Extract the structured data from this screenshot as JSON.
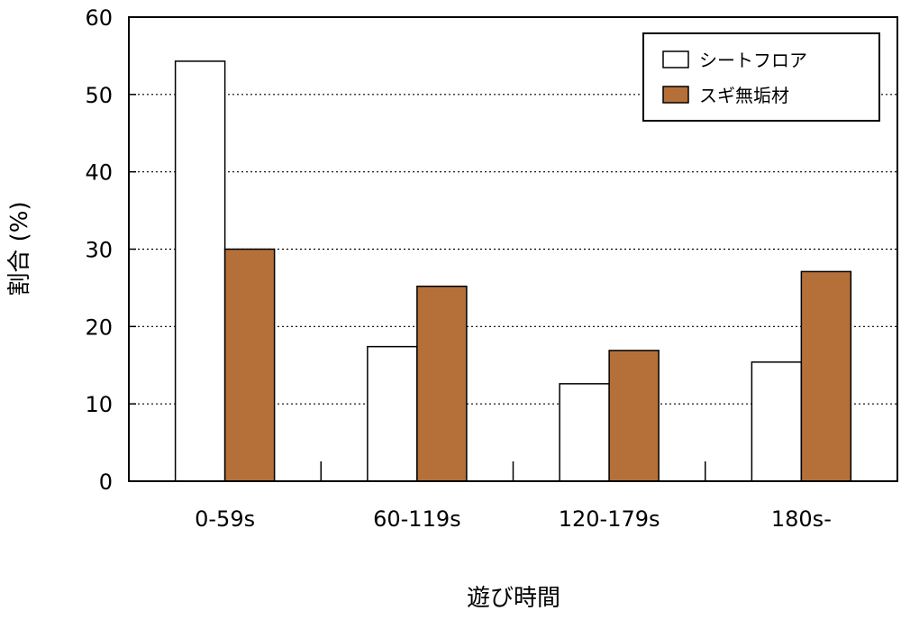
{
  "chart_data": {
    "type": "bar",
    "categories": [
      "0-59s",
      "60-119s",
      "120-179s",
      "180s-"
    ],
    "series": [
      {
        "name": "シートフロア",
        "values": [
          54.3,
          17.4,
          12.6,
          15.4
        ],
        "color": "#ffffff"
      },
      {
        "name": "スギ無垢材",
        "values": [
          30.0,
          25.2,
          16.9,
          27.1
        ],
        "color": "#b5703a"
      }
    ],
    "xlabel": "遊び時間",
    "ylabel": "割合 (%)",
    "ylim": [
      0,
      60
    ],
    "yticks": [
      0,
      10,
      20,
      30,
      40,
      50,
      60
    ],
    "grid": true,
    "legend_position": "top-right"
  }
}
